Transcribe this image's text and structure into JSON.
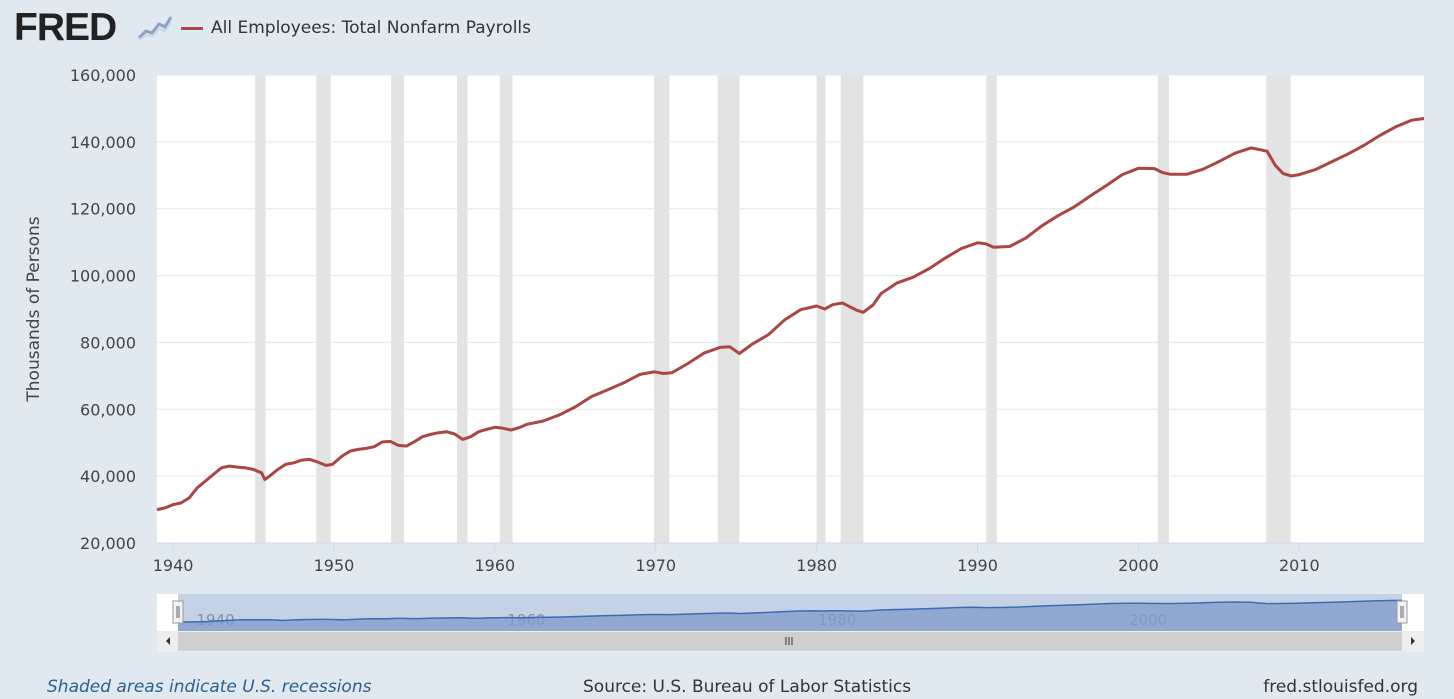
{
  "header": {
    "logo": "FRED",
    "legend_label": "All Employees: Total Nonfarm Payrolls",
    "legend_color": "#aa4643",
    "logo_icon": "fred-chart-icon"
  },
  "footer": {
    "recession_note": "Shaded areas indicate U.S. recessions",
    "source": "Source: U.S. Bureau of Labor Statistics",
    "url": "fred.stlouisfed.org"
  },
  "colors": {
    "line": "#aa4643",
    "recession": "#e3e3e3",
    "background": "#e1e9f0",
    "plot_bg": "#ffffff",
    "navigator_fill": "#7f9bc8",
    "navigator_line": "#3d6cb0"
  },
  "chart_data": {
    "type": "line",
    "title": "",
    "xlabel": "",
    "ylabel": "Thousands of Persons",
    "xlim": [
      1939.0,
      2017.75
    ],
    "ylim": [
      20000,
      160000
    ],
    "x_ticks": [
      1940,
      1950,
      1960,
      1970,
      1980,
      1990,
      2000,
      2010
    ],
    "y_ticks": [
      20000,
      40000,
      60000,
      80000,
      100000,
      120000,
      140000,
      160000
    ],
    "y_tick_labels": [
      "20,000",
      "40,000",
      "60,000",
      "80,000",
      "100,000",
      "120,000",
      "140,000",
      "160,000"
    ],
    "grid": true,
    "legend": "top-left",
    "recessions": [
      [
        1945.1,
        1945.75
      ],
      [
        1948.9,
        1949.8
      ],
      [
        1953.55,
        1954.35
      ],
      [
        1957.65,
        1958.3
      ],
      [
        1960.3,
        1961.1
      ],
      [
        1969.9,
        1970.85
      ],
      [
        1973.85,
        1975.2
      ],
      [
        1980.0,
        1980.55
      ],
      [
        1981.5,
        1982.9
      ],
      [
        1990.55,
        1991.2
      ],
      [
        2001.2,
        2001.9
      ],
      [
        2007.95,
        2009.45
      ]
    ],
    "series": [
      {
        "name": "All Employees: Total Nonfarm Payrolls",
        "x": [
          1939.0,
          1939.5,
          1940.0,
          1940.5,
          1941.0,
          1941.5,
          1942.0,
          1942.5,
          1943.0,
          1943.5,
          1944.0,
          1944.5,
          1945.0,
          1945.5,
          1945.7,
          1946.0,
          1946.5,
          1947.0,
          1947.5,
          1948.0,
          1948.5,
          1949.0,
          1949.5,
          1949.9,
          1950.5,
          1951.0,
          1951.5,
          1952.0,
          1952.5,
          1953.0,
          1953.5,
          1954.0,
          1954.5,
          1955.0,
          1955.5,
          1956.0,
          1956.5,
          1957.0,
          1957.5,
          1958.0,
          1958.5,
          1959.0,
          1959.5,
          1960.0,
          1960.5,
          1961.0,
          1961.5,
          1962.0,
          1963.0,
          1964.0,
          1965.0,
          1966.0,
          1967.0,
          1968.0,
          1969.0,
          1969.9,
          1970.5,
          1971.0,
          1972.0,
          1973.0,
          1974.0,
          1974.6,
          1975.2,
          1976.0,
          1977.0,
          1978.0,
          1979.0,
          1980.0,
          1980.5,
          1981.0,
          1981.6,
          1982.5,
          1982.9,
          1983.5,
          1984.0,
          1985.0,
          1986.0,
          1987.0,
          1988.0,
          1989.0,
          1990.0,
          1990.5,
          1991.0,
          1992.0,
          1993.0,
          1994.0,
          1995.0,
          1996.0,
          1997.0,
          1998.0,
          1999.0,
          2000.0,
          2001.0,
          2001.5,
          2002.0,
          2003.0,
          2004.0,
          2005.0,
          2006.0,
          2007.0,
          2008.0,
          2008.5,
          2009.0,
          2009.5,
          2010.0,
          2011.0,
          2012.0,
          2013.0,
          2014.0,
          2015.0,
          2016.0,
          2017.0,
          2017.75
        ],
        "y": [
          30000,
          30500,
          31500,
          32000,
          33500,
          36500,
          38500,
          40500,
          42500,
          43000,
          42700,
          42500,
          42000,
          41000,
          39000,
          40000,
          42000,
          43500,
          44000,
          44800,
          45000,
          44200,
          43200,
          43500,
          46000,
          47500,
          48000,
          48300,
          48800,
          50200,
          50400,
          49200,
          49000,
          50300,
          51800,
          52500,
          53000,
          53300,
          52600,
          51000,
          51800,
          53300,
          54000,
          54600,
          54300,
          53800,
          54500,
          55500,
          56500,
          58300,
          60700,
          63800,
          65800,
          67900,
          70400,
          71200,
          70700,
          70900,
          73700,
          76800,
          78500,
          78700,
          76700,
          79500,
          82300,
          86700,
          89800,
          90900,
          90000,
          91300,
          91800,
          89600,
          89000,
          91200,
          94600,
          97800,
          99500,
          102100,
          105300,
          108100,
          109800,
          109500,
          108500,
          108700,
          111200,
          114900,
          117900,
          120500,
          123800,
          126900,
          130200,
          132100,
          132000,
          130800,
          130300,
          130300,
          131800,
          134100,
          136600,
          138200,
          137200,
          133000,
          130500,
          129800,
          130200,
          131700,
          134000,
          136300,
          138900,
          141900,
          144500,
          146500,
          147000
        ]
      }
    ]
  }
}
